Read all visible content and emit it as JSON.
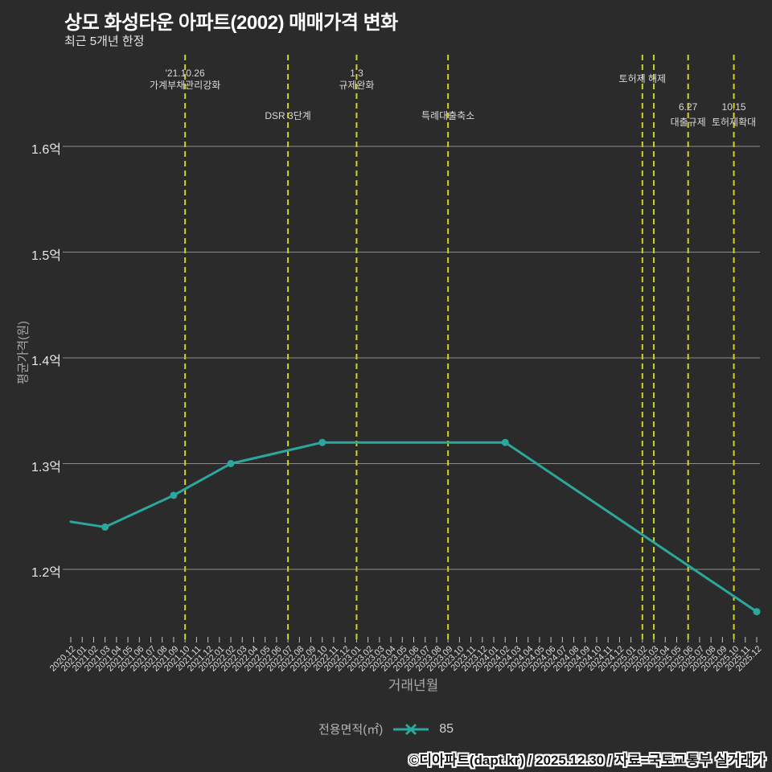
{
  "header": {
    "title": "상모 화성타운 아파트(2002) 매매가격 변화",
    "subtitle": "최근 5개년 한정"
  },
  "axes": {
    "y_title": "평균가격(원)",
    "x_title": "거래년월"
  },
  "legend": {
    "label": "전용면적(㎡)",
    "series_name": "85"
  },
  "footer": {
    "credit": "©디아파트(dapt.kr) / 2025.12.30 / 자료=국토교통부 실거래가"
  },
  "colors": {
    "background": "#2b2b2b",
    "series": "#2aa89e",
    "event_line": "#ccd32c",
    "grid": "#8c8c8c",
    "tick": "#c4c4c4",
    "title_text": "#ffffff"
  },
  "chart_data": {
    "type": "line",
    "title": "상모 화성타운 아파트(2002) 매매가격 변화",
    "subtitle": "최근 5개년 한정",
    "xlabel": "거래년월",
    "ylabel": "평균가격(원)",
    "unit": "억원",
    "ylim": [
      1.13,
      1.69
    ],
    "grid": "horizontal-on",
    "legend_position": "bottom-center",
    "y_ticks": [
      {
        "label": "1.6억",
        "value": 1.6
      },
      {
        "label": "1.5억",
        "value": 1.5
      },
      {
        "label": "1.4억",
        "value": 1.4
      },
      {
        "label": "1.3억",
        "value": 1.3
      },
      {
        "label": "1.2억",
        "value": 1.2
      }
    ],
    "x_ticks": [
      "2020.12",
      "2021.01",
      "2021.02",
      "2021.03",
      "2021.04",
      "2021.05",
      "2021.06",
      "2021.07",
      "2021.08",
      "2021.09",
      "2021.10",
      "2021.11",
      "2021.12",
      "2022.01",
      "2022.02",
      "2022.03",
      "2022.04",
      "2022.05",
      "2022.06",
      "2022.07",
      "2022.08",
      "2022.09",
      "2022.10",
      "2022.11",
      "2022.12",
      "2023.01",
      "2023.02",
      "2023.03",
      "2023.04",
      "2023.05",
      "2023.06",
      "2023.07",
      "2023.08",
      "2023.09",
      "2023.10",
      "2023.11",
      "2023.12",
      "2024.01",
      "2024.02",
      "2024.03",
      "2024.04",
      "2024.05",
      "2024.06",
      "2024.07",
      "2024.08",
      "2024.09",
      "2024.10",
      "2024.11",
      "2024.12",
      "2025.01",
      "2025.02",
      "2025.03",
      "2025.04",
      "2025.05",
      "2025.06",
      "2025.07",
      "2025.08",
      "2025.09",
      "2025.10",
      "2025.11",
      "2025.12"
    ],
    "series": [
      {
        "name": "85",
        "points": [
          {
            "x": "2020.12",
            "y": 1.245
          },
          {
            "x": "2021.03",
            "y": 1.24
          },
          {
            "x": "2021.09",
            "y": 1.27
          },
          {
            "x": "2022.02",
            "y": 1.3
          },
          {
            "x": "2022.10",
            "y": 1.32
          },
          {
            "x": "2024.02",
            "y": 1.32
          },
          {
            "x": "2025.12",
            "y": 1.16
          }
        ]
      }
    ],
    "annotations": [
      {
        "x": "2021.10",
        "lines": [
          "'21.10.26",
          "가계부채관리강화"
        ],
        "tier": "high"
      },
      {
        "x": "2022.07",
        "lines": [
          "DSR 3단계"
        ],
        "tier": "mid"
      },
      {
        "x": "2023.01",
        "lines": [
          "1.3",
          "규제완화"
        ],
        "tier": "high"
      },
      {
        "x": "2023.09",
        "lines": [
          "특례대출축소"
        ],
        "tier": "mid"
      },
      {
        "x": "2025.02",
        "lines": [
          "토허제 해제"
        ],
        "tier": "high-single"
      },
      {
        "x": "2025.03",
        "lines": [],
        "tier": "none"
      },
      {
        "x": "2025.06",
        "lines": [
          "6.27",
          "대출규제"
        ],
        "tier": "low"
      },
      {
        "x": "2025.10",
        "lines": [
          "10.15",
          "토허제확대"
        ],
        "tier": "low"
      }
    ]
  }
}
